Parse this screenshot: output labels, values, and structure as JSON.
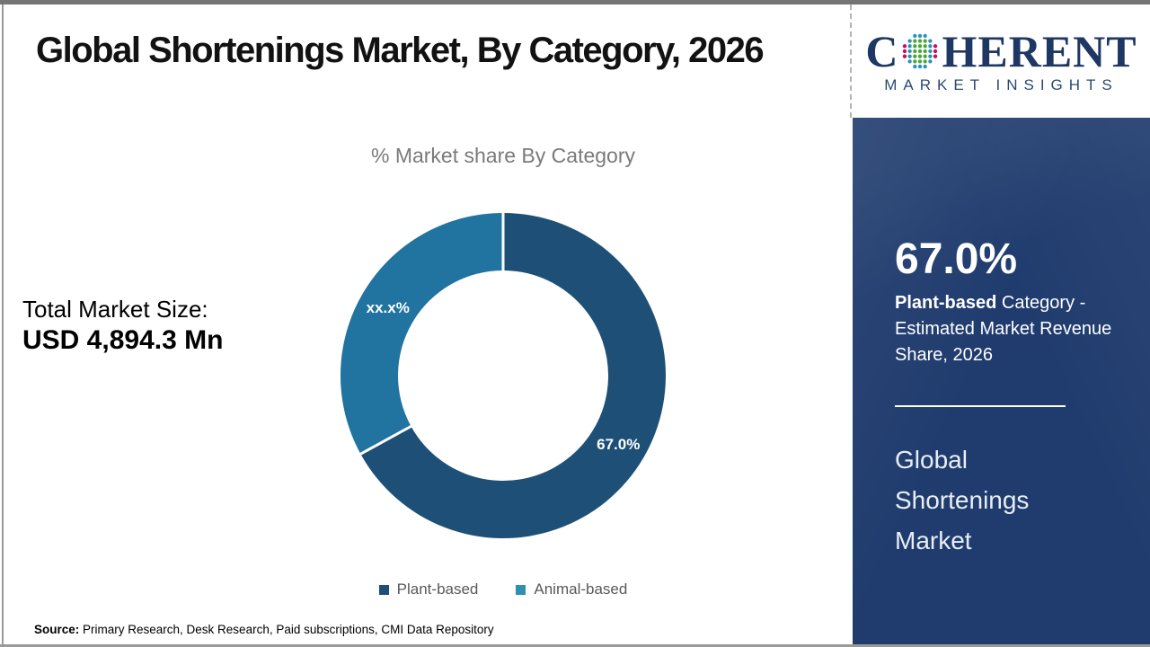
{
  "page": {
    "title": "Global Shortenings Market, By Category, 2026",
    "total_market_label": "Total Market Size:",
    "total_market_value": "USD 4,894.3 Mn",
    "source_label": "Source:",
    "source_text": " Primary Research, Desk Research, Paid subscriptions, CMI Data Repository"
  },
  "logo": {
    "word_start": "C",
    "word_end": "HERENT",
    "tagline": "MARKET INSIGHTS",
    "brand_color": "#1f3763",
    "globe_colors": {
      "inner": "#4ca83c",
      "mid": "#2f93b8",
      "outer": "#c40f5f"
    }
  },
  "sidebar": {
    "stat_value": "67.0%",
    "stat_desc_bold": "Plant-based",
    "stat_desc_rest": "  Category - Estimated Market Revenue Share, 2026",
    "report_name": "Global Shortenings Market",
    "background_color": "#203c6e"
  },
  "chart_data": {
    "type": "donut",
    "title": "% Market share By Category",
    "categories": [
      "Plant-based",
      "Animal-based"
    ],
    "values": [
      67.0,
      33.0
    ],
    "slice_labels": [
      "67.0%",
      "xx.x%"
    ],
    "colors": [
      "#1e5077",
      "#2173a0"
    ],
    "legend_colors": [
      "#1f4e79",
      "#2e8fb5"
    ],
    "legend_position": "bottom",
    "start_angle_deg": 0,
    "inner_radius_ratio": 0.646,
    "separator_color": "#ffffff"
  }
}
